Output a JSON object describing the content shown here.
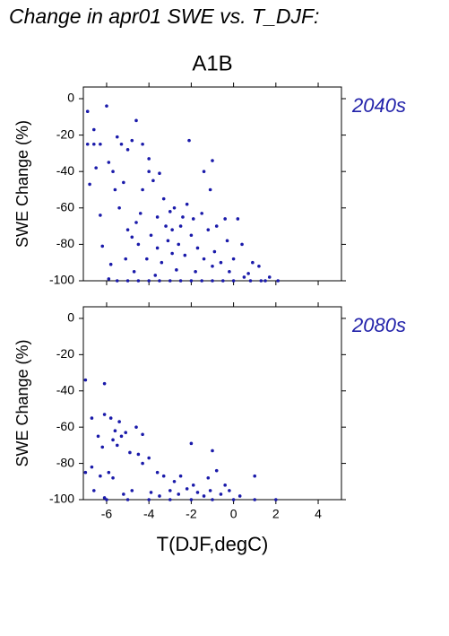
{
  "title": "Change in apr01 SWE vs. T_DJF:",
  "subtitle": "A1B",
  "xlabel": "T(DJF,degC)",
  "chart_data": [
    {
      "type": "scatter",
      "annotation": "2040s",
      "ylabel": "SWE Change (%)",
      "color": "#1a1aaa",
      "xlim": [
        -7.1,
        5.1
      ],
      "ylim": [
        -100,
        6.4
      ],
      "xticks": [
        -6,
        -4,
        -2,
        0,
        2,
        4
      ],
      "yticks": [
        0,
        -20,
        -40,
        -60,
        -80,
        -100
      ],
      "x": [
        -6.9,
        -6.0,
        -6.9,
        -6.6,
        -6.3,
        -6.6,
        -5.5,
        -5.3,
        -5.0,
        -4.8,
        -4.6,
        -4.3,
        -4.0,
        -2.1,
        -6.5,
        -6.8,
        -5.9,
        -5.7,
        -5.6,
        -5.2,
        -6.3,
        -6.2,
        -5.8,
        -5.9,
        -5.4,
        -5.0,
        -4.8,
        -4.6,
        -4.3,
        -4.0,
        -3.8,
        -3.5,
        -3.3,
        -3.0,
        -2.8,
        -2.5,
        -2.2,
        -1.9,
        -1.5,
        -1.1,
        -0.8,
        -0.4,
        0.2,
        0.4,
        0.9,
        1.2,
        1.7,
        2.1,
        1.3,
        0.5,
        -4.5,
        -4.1,
        -3.9,
        -3.6,
        -3.4,
        -3.1,
        -2.9,
        -2.6,
        -2.3,
        -2.0,
        -1.7,
        -1.4,
        -1.2,
        -0.9,
        -0.6,
        -0.3,
        0,
        -1.8,
        -2.7,
        -3.7,
        -4.7,
        -5.1,
        -3.2,
        -2.4,
        -1.0,
        -0.2,
        0.7,
        -1.4,
        -1.0,
        -3.6,
        -4.4,
        -2.9,
        -5.5,
        -5,
        -4.5,
        -4,
        -3.5,
        -3,
        -2.5,
        -2,
        -1.5,
        -1,
        -0.5,
        0,
        0.8,
        1.5
      ],
      "values": [
        -7,
        -4,
        -25,
        -25,
        -25,
        -17,
        -21,
        -25,
        -28,
        -23,
        -12,
        -25,
        -33,
        -23,
        -38,
        -47,
        -35,
        -40,
        -50,
        -46,
        -64,
        -81,
        -91,
        -99,
        -60,
        -72,
        -76,
        -68,
        -50,
        -40,
        -45,
        -41,
        -55,
        -62,
        -60,
        -70,
        -58,
        -66,
        -63,
        -50,
        -70,
        -66,
        -66,
        -80,
        -90,
        -92,
        -98,
        -100,
        -100,
        -98,
        -80,
        -88,
        -75,
        -82,
        -90,
        -78,
        -85,
        -80,
        -86,
        -75,
        -82,
        -88,
        -72,
        -84,
        -90,
        -78,
        -88,
        -95,
        -94,
        -97,
        -95,
        -88,
        -70,
        -65,
        -92,
        -95,
        -96,
        -40,
        -34,
        -65,
        -63,
        -72,
        -100,
        -100,
        -100,
        -100,
        -100,
        -100,
        -100,
        -100,
        -100,
        -100,
        -100,
        -100,
        -100,
        -100
      ]
    },
    {
      "type": "scatter",
      "annotation": "2080s",
      "ylabel": "SWE Change (%)",
      "color": "#1a1aaa",
      "xlim": [
        -7.1,
        5.1
      ],
      "ylim": [
        -100,
        6.4
      ],
      "xticks": [
        -6,
        -4,
        -2,
        0,
        2,
        4
      ],
      "yticks": [
        0,
        -20,
        -40,
        -60,
        -80,
        -100
      ],
      "x": [
        -7,
        -6.1,
        -6.7,
        -6.4,
        -6.1,
        -5.8,
        -5.6,
        -5.4,
        -5.1,
        -4.6,
        -6.2,
        -5.7,
        -5.5,
        -5.3,
        -4.9,
        -4.3,
        -4.0,
        -2.0,
        -1.0,
        -7,
        -6.7,
        -6.3,
        -5.9,
        -5.7,
        -4.5,
        -4.3,
        -3.6,
        -3.3,
        -2.8,
        -2.5,
        -1.9,
        -1.2,
        -0.8,
        -0.4,
        1.0,
        -6.6,
        -6.1,
        -5.2,
        -4.8,
        -3.9,
        -3.5,
        -3.0,
        -2.6,
        -2.2,
        -1.7,
        -1.4,
        -1.1,
        -0.6,
        -0.2,
        0.3,
        -6,
        -5,
        -4,
        -3,
        -2,
        -1,
        0,
        1,
        2
      ],
      "values": [
        -34,
        -36,
        -55,
        -65,
        -53,
        -55,
        -62,
        -57,
        -63,
        -60,
        -71,
        -67,
        -70,
        -65,
        -74,
        -64,
        -77,
        -69,
        -73,
        -85,
        -82,
        -87,
        -85,
        -88,
        -75,
        -80,
        -85,
        -87,
        -90,
        -87,
        -92,
        -88,
        -84,
        -92,
        -87,
        -95,
        -99,
        -97,
        -95,
        -96,
        -98,
        -95,
        -97,
        -94,
        -96,
        -98,
        -95,
        -97,
        -95,
        -98,
        -100,
        -100,
        -100,
        -100,
        -100,
        -100,
        -100,
        -100,
        -100
      ]
    }
  ]
}
